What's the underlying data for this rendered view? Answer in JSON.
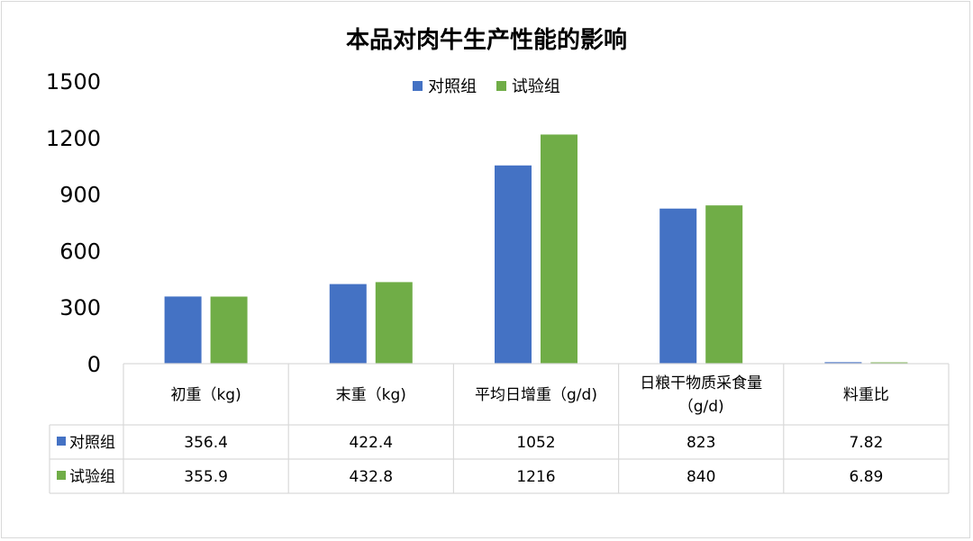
{
  "chart_data": {
    "type": "bar",
    "title": "本品对肉牛生产性能的影响",
    "categories": [
      "初重（kg)",
      "末重（kg)",
      "平均日增重（g/d)",
      "日粮干物质采食量\n（g/d)",
      "料重比"
    ],
    "series": [
      {
        "name": "对照组",
        "color": "#4472C4",
        "values": [
          356.4,
          422.4,
          1052,
          823,
          7.82
        ]
      },
      {
        "name": "试验组",
        "color": "#70AD47",
        "values": [
          355.9,
          432.8,
          1216,
          840,
          6.89
        ]
      }
    ],
    "table_values": [
      [
        "356.4",
        "422.4",
        "1052",
        "823",
        "7.82"
      ],
      [
        "355.9",
        "432.8",
        "1216",
        "840",
        "6.89"
      ]
    ],
    "ylim": [
      0,
      1500
    ],
    "yticks": [
      "0",
      "300",
      "600",
      "900",
      "1200",
      "1500"
    ],
    "legend_position": "top-center",
    "grid": false
  }
}
